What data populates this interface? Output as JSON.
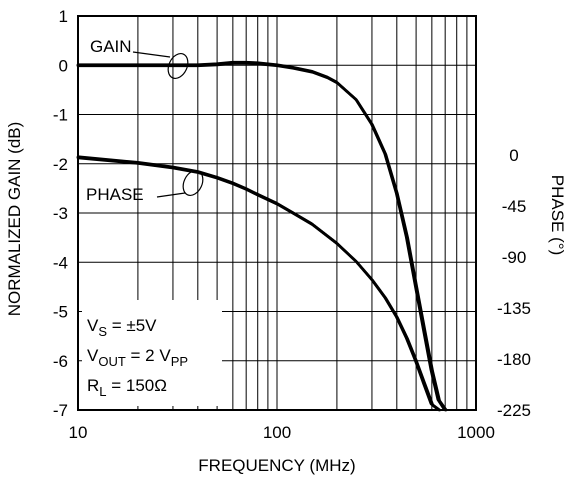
{
  "chart_data": {
    "type": "line",
    "title": "",
    "xlabel": "FREQUENCY (MHz)",
    "ylabel_left": "NORMALIZED GAIN (dB)",
    "ylabel_right": "PHASE (°)",
    "x_scale": "log",
    "xlim": [
      10,
      1000
    ],
    "ylim_left": [
      -7,
      1
    ],
    "ylim_right": [
      -225,
      0
    ],
    "grid": true,
    "legend": "none",
    "x_ticks": [
      {
        "value": 10,
        "label": "10"
      },
      {
        "value": 100,
        "label": "100"
      },
      {
        "value": 1000,
        "label": "1000"
      }
    ],
    "y_ticks_left": [
      {
        "value": 1,
        "label": "1"
      },
      {
        "value": 0,
        "label": "0"
      },
      {
        "value": -1,
        "label": "-1"
      },
      {
        "value": -2,
        "label": "-2"
      },
      {
        "value": -3,
        "label": "-3"
      },
      {
        "value": -4,
        "label": "-4"
      },
      {
        "value": -5,
        "label": "-5"
      },
      {
        "value": -6,
        "label": "-6"
      },
      {
        "value": -7,
        "label": "-7"
      }
    ],
    "y_ticks_right": [
      {
        "value": 0,
        "label": "0"
      },
      {
        "value": -45,
        "label": "-45"
      },
      {
        "value": -90,
        "label": "-90"
      },
      {
        "value": -135,
        "label": "-135"
      },
      {
        "value": -180,
        "label": "-180"
      },
      {
        "value": -225,
        "label": "-225"
      }
    ],
    "series": [
      {
        "name": "GAIN",
        "axis": "left",
        "x": [
          10,
          20,
          30,
          40,
          50,
          60,
          70,
          80,
          100,
          120,
          150,
          180,
          200,
          250,
          300,
          350,
          400,
          450,
          500,
          550,
          600,
          650,
          700
        ],
        "y": [
          0.0,
          0.0,
          0.0,
          0.0,
          0.02,
          0.05,
          0.05,
          0.04,
          0.0,
          -0.05,
          -0.13,
          -0.25,
          -0.35,
          -0.7,
          -1.2,
          -1.8,
          -2.6,
          -3.5,
          -4.5,
          -5.4,
          -6.2,
          -6.8,
          -7.0
        ]
      },
      {
        "name": "PHASE",
        "axis": "right",
        "x": [
          10,
          20,
          30,
          40,
          50,
          60,
          70,
          80,
          100,
          120,
          150,
          200,
          250,
          300,
          350,
          400,
          450,
          500,
          550,
          600,
          650
        ],
        "y": [
          -2,
          -7,
          -11,
          -15,
          -20,
          -25,
          -30,
          -35,
          -43,
          -51,
          -61,
          -78,
          -94,
          -110,
          -126,
          -143,
          -162,
          -182,
          -202,
          -220,
          -225
        ]
      }
    ],
    "annotations": [
      {
        "text": "GAIN"
      },
      {
        "text": "PHASE"
      },
      {
        "text_parts": [
          [
            "V",
            "n"
          ],
          [
            "S",
            "sub"
          ],
          [
            " = ±5V",
            "n"
          ]
        ]
      },
      {
        "text_parts": [
          [
            "V",
            "n"
          ],
          [
            "OUT",
            "sub"
          ],
          [
            " = 2 V",
            "n"
          ],
          [
            "PP",
            "sub"
          ]
        ]
      },
      {
        "text_parts": [
          [
            "R",
            "n"
          ],
          [
            "L",
            "sub"
          ],
          [
            " = 150Ω",
            "n"
          ]
        ]
      }
    ]
  }
}
